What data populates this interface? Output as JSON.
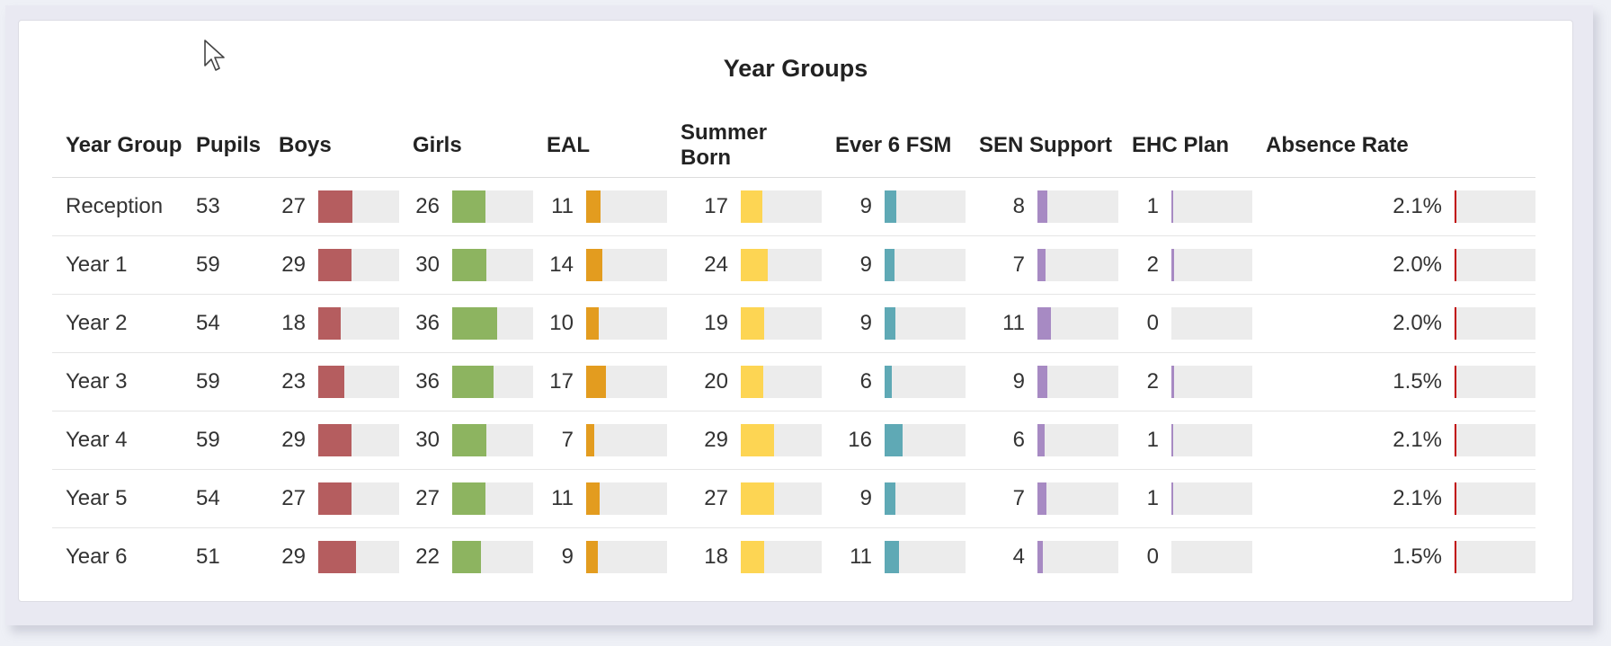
{
  "title": "Year Groups",
  "headers": [
    "Year Group",
    "Pupils",
    "Boys",
    "Girls",
    "EAL",
    "Summer Born",
    "Ever 6 FSM",
    "SEN Support",
    "EHC Plan",
    "Absence Rate"
  ],
  "bar_colors": {
    "boys": "#b55d5f",
    "girls": "#8db460",
    "eal": "#e39c1f",
    "summer_born": "#fdd553",
    "ever6_fsm": "#5fa9b5",
    "sen_support": "#a78ac3",
    "ehc_plan": "#a78ac3",
    "absence_rate": "#c00000",
    "track": "#ececec"
  },
  "rows": [
    {
      "year_group": "Reception",
      "pupils": "53",
      "boys": "27",
      "girls": "26",
      "eal": "11",
      "summer_born": "17",
      "ever6_fsm": "9",
      "sen_support": "8",
      "ehc_plan": "1",
      "absence_rate": "2.1%"
    },
    {
      "year_group": "Year 1",
      "pupils": "59",
      "boys": "29",
      "girls": "30",
      "eal": "14",
      "summer_born": "24",
      "ever6_fsm": "9",
      "sen_support": "7",
      "ehc_plan": "2",
      "absence_rate": "2.0%"
    },
    {
      "year_group": "Year 2",
      "pupils": "54",
      "boys": "18",
      "girls": "36",
      "eal": "10",
      "summer_born": "19",
      "ever6_fsm": "9",
      "sen_support": "11",
      "ehc_plan": "0",
      "absence_rate": "2.0%"
    },
    {
      "year_group": "Year 3",
      "pupils": "59",
      "boys": "23",
      "girls": "36",
      "eal": "17",
      "summer_born": "20",
      "ever6_fsm": "6",
      "sen_support": "9",
      "ehc_plan": "2",
      "absence_rate": "1.5%"
    },
    {
      "year_group": "Year 4",
      "pupils": "59",
      "boys": "29",
      "girls": "30",
      "eal": "7",
      "summer_born": "29",
      "ever6_fsm": "16",
      "sen_support": "6",
      "ehc_plan": "1",
      "absence_rate": "2.1%"
    },
    {
      "year_group": "Year 5",
      "pupils": "54",
      "boys": "27",
      "girls": "27",
      "eal": "11",
      "summer_born": "27",
      "ever6_fsm": "9",
      "sen_support": "7",
      "ehc_plan": "1",
      "absence_rate": "2.1%"
    },
    {
      "year_group": "Year 6",
      "pupils": "51",
      "boys": "29",
      "girls": "22",
      "eal": "9",
      "summer_born": "18",
      "ever6_fsm": "11",
      "sen_support": "4",
      "ehc_plan": "0",
      "absence_rate": "1.5%"
    }
  ],
  "cursor_icon": "arrow-cursor-icon"
}
